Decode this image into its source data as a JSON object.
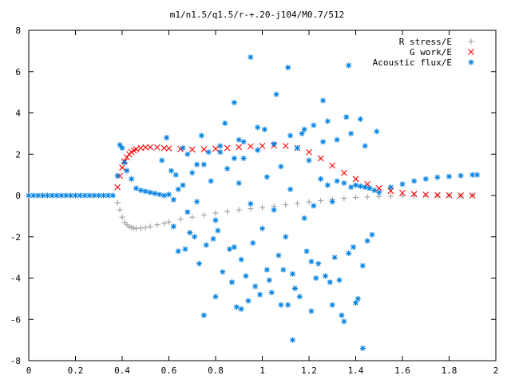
{
  "chart_data": {
    "type": "scatter",
    "title": "m1/n1.5/q1.5/r-+.20-j104/M0.7/512",
    "xlabel": "",
    "ylabel": "",
    "xlim": [
      0,
      2
    ],
    "ylim": [
      -8,
      8
    ],
    "x_ticks": [
      0,
      0.2,
      0.4,
      0.6,
      0.8,
      1,
      1.2,
      1.4,
      1.6,
      1.8,
      2
    ],
    "x_tick_labels": [
      "0",
      "0.2",
      "0.4",
      "0.6",
      "0.8",
      "1",
      "1.2",
      "1.4",
      "1.6",
      "1.8",
      "2"
    ],
    "y_ticks": [
      -8,
      -6,
      -4,
      -2,
      0,
      2,
      4,
      6,
      8
    ],
    "y_tick_labels": [
      "-8",
      "-6",
      "-4",
      "-2",
      "0",
      "2",
      "4",
      "6",
      "8"
    ],
    "grid": false,
    "legend_position": "top-right",
    "series": [
      {
        "name": "R stress/E",
        "marker": "plus",
        "color": "#a0a0a0",
        "x": [
          0.38,
          0.39,
          0.4,
          0.41,
          0.42,
          0.43,
          0.44,
          0.45,
          0.46,
          0.48,
          0.5,
          0.52,
          0.55,
          0.58,
          0.6,
          0.65,
          0.7,
          0.75,
          0.8,
          0.85,
          0.9,
          0.95,
          1.0,
          1.05,
          1.1,
          1.15,
          1.2,
          1.25,
          1.3,
          1.35,
          1.4,
          1.45,
          1.5,
          1.55,
          1.6,
          1.65,
          1.7,
          1.75,
          1.8,
          1.85,
          1.9
        ],
        "y": [
          -0.35,
          -0.7,
          -1.05,
          -1.3,
          -1.42,
          -1.5,
          -1.55,
          -1.58,
          -1.6,
          -1.58,
          -1.55,
          -1.5,
          -1.42,
          -1.35,
          -1.28,
          -1.15,
          -1.05,
          -0.95,
          -0.85,
          -0.78,
          -0.7,
          -0.64,
          -0.58,
          -0.52,
          -0.45,
          -0.38,
          -0.31,
          -0.25,
          -0.19,
          -0.14,
          -0.1,
          -0.07,
          -0.05,
          -0.03,
          -0.02,
          -0.01,
          -0.01,
          0.0,
          0.0,
          0.0,
          0.0
        ]
      },
      {
        "name": "G work/E",
        "marker": "cross",
        "color": "#ff0000",
        "x": [
          0.38,
          0.39,
          0.4,
          0.41,
          0.42,
          0.43,
          0.44,
          0.45,
          0.46,
          0.48,
          0.5,
          0.52,
          0.55,
          0.58,
          0.6,
          0.65,
          0.7,
          0.75,
          0.8,
          0.85,
          0.9,
          0.95,
          1.0,
          1.05,
          1.1,
          1.15,
          1.2,
          1.25,
          1.3,
          1.35,
          1.4,
          1.45,
          1.5,
          1.55,
          1.6,
          1.65,
          1.7,
          1.75,
          1.8,
          1.85,
          1.9
        ],
        "y": [
          0.4,
          0.95,
          1.35,
          1.65,
          1.85,
          2.0,
          2.1,
          2.18,
          2.24,
          2.3,
          2.33,
          2.34,
          2.33,
          2.3,
          2.28,
          2.25,
          2.23,
          2.24,
          2.27,
          2.3,
          2.34,
          2.38,
          2.4,
          2.42,
          2.4,
          2.3,
          2.1,
          1.8,
          1.45,
          1.1,
          0.8,
          0.55,
          0.35,
          0.22,
          0.13,
          0.07,
          0.04,
          0.02,
          0.01,
          0.0,
          0.0
        ]
      },
      {
        "name": "Acoustic flux/E",
        "marker": "star",
        "color": "#0080e0",
        "x": [
          0.0,
          0.02,
          0.04,
          0.06,
          0.08,
          0.1,
          0.12,
          0.14,
          0.16,
          0.18,
          0.2,
          0.22,
          0.24,
          0.26,
          0.28,
          0.3,
          0.32,
          0.34,
          0.36,
          0.38,
          0.39,
          0.4,
          0.41,
          0.42,
          0.44,
          0.46,
          0.48,
          0.5,
          0.52,
          0.54,
          0.56,
          0.58,
          0.6,
          0.62,
          0.64,
          0.66,
          0.68,
          0.7,
          0.72,
          0.75,
          0.78,
          0.8,
          0.82,
          0.85,
          0.88,
          0.9,
          0.92,
          0.95,
          0.98,
          1.0,
          1.02,
          1.05,
          1.08,
          1.1,
          1.12,
          1.15,
          1.18,
          1.2,
          1.22,
          1.25,
          1.28,
          1.3,
          1.32,
          1.35,
          1.38,
          1.4,
          1.42,
          1.44,
          1.46,
          1.48,
          1.5,
          1.55,
          1.6,
          1.65,
          1.7,
          1.75,
          1.8,
          1.85,
          1.9,
          1.92,
          0.86,
          0.91,
          0.96,
          1.02,
          1.07,
          1.13,
          1.19,
          1.24,
          1.31,
          1.37,
          1.43,
          0.64,
          0.69,
          0.73,
          0.79,
          0.83,
          0.87,
          0.93,
          0.97,
          1.03,
          1.09,
          1.14,
          1.21,
          1.27,
          1.33,
          1.39,
          1.45,
          0.62,
          0.67,
          0.71,
          0.76,
          0.81,
          0.89,
          0.94,
          0.99,
          1.04,
          1.11,
          1.16,
          1.23,
          1.29,
          1.34,
          1.41,
          1.47,
          0.57,
          0.61,
          0.66,
          0.74,
          0.84,
          0.9,
          1.01,
          1.06,
          1.17,
          1.26,
          1.36,
          1.42,
          1.49,
          0.59,
          0.63,
          0.68,
          0.72,
          0.77,
          0.82,
          0.88,
          0.92,
          0.98,
          1.05,
          1.12,
          1.18,
          1.22,
          1.28,
          1.32,
          1.38,
          1.44,
          0.91,
          1.13,
          1.35,
          1.4,
          1.43,
          1.37,
          1.26,
          1.11,
          0.95,
          0.88,
          0.8,
          0.75,
          1.08,
          1.21,
          1.3
        ],
        "y": [
          0.0,
          0.0,
          0.0,
          0.0,
          0.0,
          0.0,
          0.0,
          0.0,
          0.0,
          0.0,
          0.0,
          0.0,
          0.0,
          0.0,
          0.0,
          0.0,
          0.0,
          0.0,
          0.0,
          0.95,
          2.45,
          2.3,
          1.6,
          1.2,
          0.8,
          0.35,
          0.25,
          0.2,
          0.15,
          0.1,
          0.05,
          0.0,
          0.05,
          -0.2,
          0.3,
          0.5,
          -0.8,
          1.1,
          -0.3,
          1.5,
          0.7,
          -1.2,
          2.1,
          1.3,
          -2.5,
          0.6,
          1.8,
          -0.4,
          2.2,
          -1.6,
          0.9,
          -0.7,
          1.4,
          -2.0,
          0.3,
          2.3,
          -1.1,
          1.7,
          -0.5,
          0.8,
          0.5,
          -0.3,
          0.7,
          0.6,
          0.4,
          0.5,
          0.45,
          0.4,
          0.35,
          0.25,
          0.15,
          0.4,
          0.55,
          0.7,
          0.8,
          0.88,
          0.92,
          0.96,
          1.0,
          1.0,
          -2.6,
          -3.1,
          -2.3,
          -3.6,
          -2.9,
          -3.8,
          -2.7,
          -3.3,
          -3.0,
          -2.8,
          -3.4,
          -2.7,
          -1.8,
          -3.3,
          -2.1,
          -3.7,
          -4.2,
          -3.9,
          -4.4,
          -4.1,
          -3.6,
          -4.5,
          -3.2,
          -3.9,
          -4.1,
          -2.5,
          -2.2,
          -1.5,
          -2.6,
          -2.0,
          -2.4,
          -1.7,
          -5.4,
          -5.1,
          -4.8,
          -4.7,
          -5.3,
          -4.9,
          -4.0,
          -4.2,
          -5.8,
          -5.0,
          -1.9,
          1.7,
          1.2,
          2.3,
          2.9,
          3.5,
          2.7,
          3.2,
          4.9,
          3.0,
          2.6,
          3.8,
          3.7,
          3.1,
          2.8,
          1.0,
          2.0,
          1.5,
          2.1,
          2.4,
          1.8,
          2.6,
          3.3,
          2.5,
          2.9,
          3.2,
          3.4,
          3.6,
          2.7,
          3.0,
          2.4,
          -5.5,
          -7.0,
          -6.1,
          -5.2,
          -7.4,
          6.3,
          4.6,
          6.2,
          6.7,
          4.5,
          -4.9,
          -5.8,
          -5.3,
          -5.6,
          -5.3
        ]
      }
    ]
  }
}
